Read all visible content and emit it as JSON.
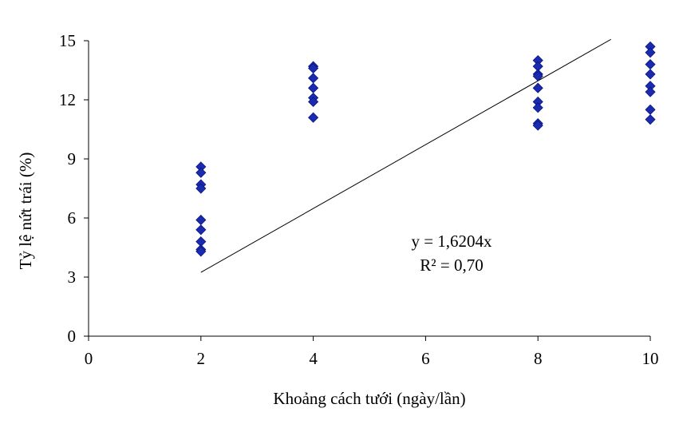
{
  "chart_data": {
    "type": "scatter",
    "xlabel": "Khoảng cách tưới (ngày/lần)",
    "ylabel": "Tỷ lệ nứt trái (%)",
    "xlim": [
      0,
      10
    ],
    "ylim": [
      0,
      15
    ],
    "x_ticks": [
      "0",
      "2",
      "4",
      "6",
      "8",
      "10"
    ],
    "y_ticks": [
      "0",
      "3",
      "6",
      "9",
      "12",
      "15"
    ],
    "grid": false,
    "legend": "none",
    "marker": "diamond",
    "marker_color": "#1a2bb0",
    "trendline": {
      "slope": 1.6204,
      "intercept": 0,
      "x_range": [
        2,
        9.3
      ],
      "equation": "y = 1,6204x",
      "r_squared": "R² = 0,70"
    },
    "series": [
      {
        "points": [
          [
            2,
            8.6
          ],
          [
            2,
            8.3
          ],
          [
            2,
            7.7
          ],
          [
            2,
            7.5
          ],
          [
            2,
            5.9
          ],
          [
            2,
            5.4
          ],
          [
            2,
            4.8
          ],
          [
            2,
            4.4
          ],
          [
            2,
            4.3
          ],
          [
            4,
            13.7
          ],
          [
            4,
            13.6
          ],
          [
            4,
            13.1
          ],
          [
            4,
            12.6
          ],
          [
            4,
            12.1
          ],
          [
            4,
            11.9
          ],
          [
            4,
            11.1
          ],
          [
            8,
            14.0
          ],
          [
            8,
            13.7
          ],
          [
            8,
            13.3
          ],
          [
            8,
            13.2
          ],
          [
            8,
            12.6
          ],
          [
            8,
            11.9
          ],
          [
            8,
            11.6
          ],
          [
            8,
            10.8
          ],
          [
            8,
            10.7
          ],
          [
            10,
            14.7
          ],
          [
            10,
            14.4
          ],
          [
            10,
            13.8
          ],
          [
            10,
            13.3
          ],
          [
            10,
            12.7
          ],
          [
            10,
            12.4
          ],
          [
            10,
            11.5
          ],
          [
            10,
            11.0
          ]
        ]
      }
    ]
  }
}
